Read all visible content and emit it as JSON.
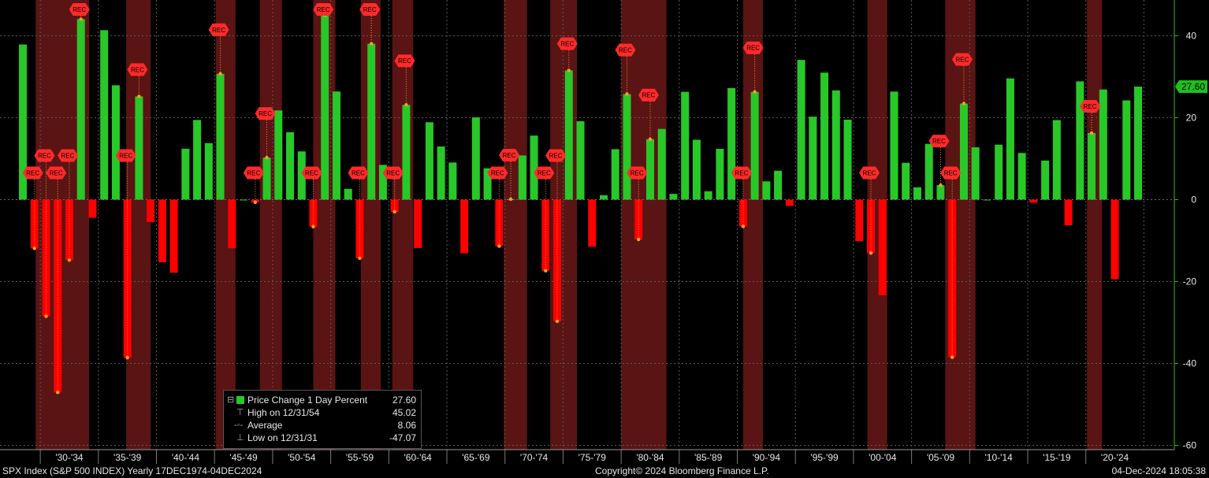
{
  "chart_data": {
    "type": "bar",
    "title": "SPX Index (S&P 500 INDEX)",
    "years": [
      1928,
      1929,
      1930,
      1931,
      1932,
      1933,
      1934,
      1935,
      1936,
      1937,
      1938,
      1939,
      1940,
      1941,
      1942,
      1943,
      1944,
      1945,
      1946,
      1947,
      1948,
      1949,
      1950,
      1951,
      1952,
      1953,
      1954,
      1955,
      1956,
      1957,
      1958,
      1959,
      1960,
      1961,
      1962,
      1963,
      1964,
      1965,
      1966,
      1967,
      1968,
      1969,
      1970,
      1971,
      1972,
      1973,
      1974,
      1975,
      1976,
      1977,
      1978,
      1979,
      1980,
      1981,
      1982,
      1983,
      1984,
      1985,
      1986,
      1987,
      1988,
      1989,
      1990,
      1991,
      1992,
      1993,
      1994,
      1995,
      1996,
      1997,
      1998,
      1999,
      2000,
      2001,
      2002,
      2003,
      2004,
      2005,
      2006,
      2007,
      2008,
      2009,
      2010,
      2011,
      2012,
      2013,
      2014,
      2015,
      2016,
      2017,
      2018,
      2019,
      2020,
      2021,
      2022,
      2023,
      2024
    ],
    "values": [
      37.88,
      -11.91,
      -28.48,
      -47.07,
      -14.78,
      44.08,
      -4.42,
      41.37,
      27.92,
      -38.59,
      25.21,
      -5.45,
      -15.29,
      -17.86,
      12.43,
      19.45,
      13.8,
      30.72,
      -11.87,
      0.0,
      -0.65,
      10.26,
      21.78,
      16.46,
      11.78,
      -6.62,
      45.02,
      26.4,
      2.62,
      -14.31,
      38.06,
      8.48,
      -2.97,
      23.13,
      -11.81,
      18.89,
      12.97,
      9.06,
      -13.09,
      20.09,
      7.66,
      -11.36,
      0.1,
      10.79,
      15.63,
      -17.37,
      -29.72,
      31.55,
      19.15,
      -11.5,
      1.06,
      12.31,
      25.77,
      -9.73,
      14.76,
      17.27,
      1.4,
      26.33,
      14.62,
      2.03,
      12.4,
      27.25,
      -6.56,
      26.31,
      4.46,
      7.06,
      -1.54,
      34.11,
      20.26,
      31.01,
      26.67,
      19.53,
      -10.14,
      -13.04,
      -23.37,
      26.38,
      8.99,
      3.0,
      13.62,
      3.53,
      -38.49,
      23.45,
      12.78,
      0.0,
      13.41,
      29.6,
      11.39,
      -0.73,
      9.54,
      19.42,
      -6.24,
      28.88,
      16.26,
      26.89,
      -19.44,
      24.23,
      27.6
    ],
    "recessions": [
      [
        1929.6,
        1933.2
      ],
      [
        1937.4,
        1938.5
      ],
      [
        1945.1,
        1945.8
      ],
      [
        1948.9,
        1949.8
      ],
      [
        1953.5,
        1954.4
      ],
      [
        1957.6,
        1958.3
      ],
      [
        1960.3,
        1961.1
      ],
      [
        1969.9,
        1970.9
      ],
      [
        1973.9,
        1975.2
      ],
      [
        1980.0,
        1980.6
      ],
      [
        1981.5,
        1982.9
      ],
      [
        1990.5,
        1991.2
      ],
      [
        2001.2,
        2001.9
      ],
      [
        2007.9,
        2009.5
      ],
      [
        2020.1,
        2020.4
      ]
    ],
    "rec_label": "REC",
    "ylim": [
      -63,
      50
    ],
    "yticks": [
      40,
      20,
      0,
      -20,
      -40,
      -60
    ],
    "xticks": [
      "'30-'34",
      "'35-'39",
      "'40-'44",
      "'45-'49",
      "'50-'54",
      "'55-'59",
      "'60-'64",
      "'65-'69",
      "'70-'74",
      "'75-'79",
      "'80-'84",
      "'85-'89",
      "'90-'94",
      "'95-'99",
      "'00-'04",
      "'05-'09",
      "'10-'14",
      "'15-'19",
      "'20-'24"
    ],
    "last_value_label": "27.60",
    "colors": {
      "positive": "#28c828",
      "negative": "#ff0000",
      "recession": "#5a1414",
      "axis_accent": "#1fbf1f",
      "marker": "#ff2a2a"
    }
  },
  "legend": {
    "series_name": "Price Change 1 Day Percent",
    "series_value": "27.60",
    "high_label": "High on 12/31/54",
    "high_value": "45.02",
    "avg_label": "Average",
    "avg_value": "8.06",
    "low_label": "Low on 12/31/31",
    "low_value": "-47.07"
  },
  "footer": {
    "left": "SPX Index (S&P 500 INDEX)  Yearly 17DEC1974-04DEC2024",
    "center": "Copyright© 2024 Bloomberg Finance L.P.",
    "right": "04-Dec-2024 18:05:38"
  }
}
